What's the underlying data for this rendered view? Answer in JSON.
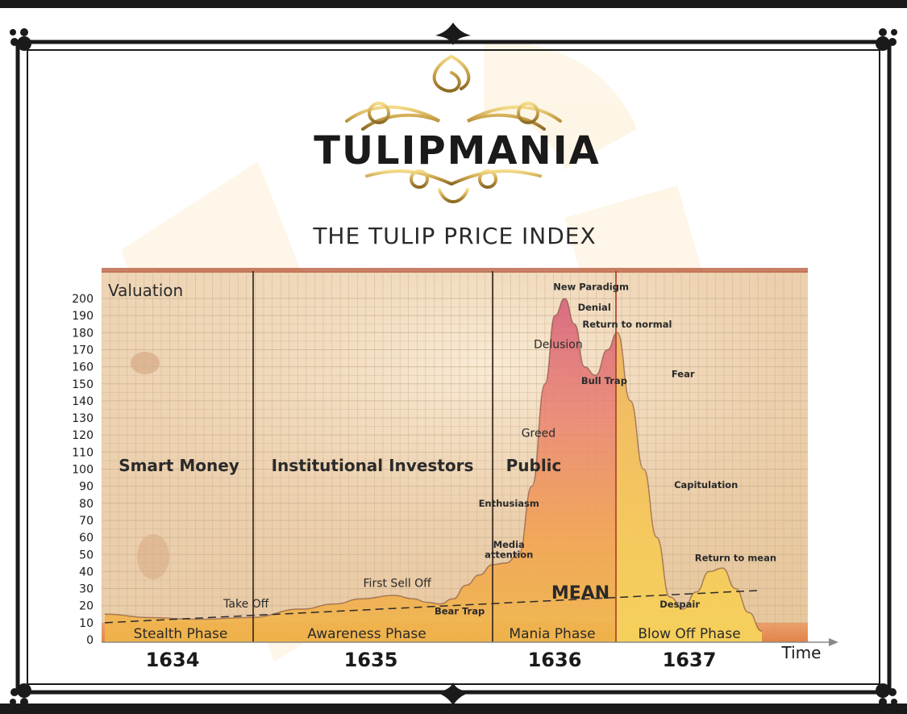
{
  "header": {
    "logo_text": "TULIPMANIA",
    "subtitle": "THE TULIP PRICE INDEX"
  },
  "colors": {
    "frame": "#1a1a1a",
    "gold": "#c9a24a",
    "paper": "#f1dcc0",
    "curve_top": "#d8607a",
    "curve_mid": "#f29a4a",
    "curve_bottom": "#f6c64a",
    "band": "#e88a4c",
    "text": "#2a2a2a"
  },
  "chart_data": {
    "type": "area",
    "ylabel": "Valuation",
    "xlabel": "Time",
    "ylim": [
      0,
      200
    ],
    "y_ticks": [
      0,
      10,
      20,
      30,
      40,
      50,
      60,
      70,
      80,
      90,
      100,
      110,
      120,
      130,
      140,
      150,
      160,
      170,
      180,
      190,
      200
    ],
    "grid": true,
    "years": [
      "1634",
      "1635",
      "1636",
      "1637"
    ],
    "phases": [
      "Stealth Phase",
      "Awareness Phase",
      "Mania Phase",
      "Blow Off Phase"
    ],
    "participants": [
      "Smart Money",
      "Institutional Investors",
      "Public"
    ],
    "mean_label": "MEAN",
    "mean_line": {
      "x": [
        0,
        100
      ],
      "y": [
        10,
        29
      ]
    },
    "series": [
      {
        "x": [
          0,
          7,
          14,
          22,
          30,
          35,
          39,
          44,
          47,
          49,
          51,
          53,
          55,
          57,
          59,
          61,
          63,
          65,
          67,
          68.5,
          70,
          71.5,
          73,
          74.7,
          76.5,
          78,
          80,
          82,
          84,
          86,
          88,
          90,
          92,
          94,
          96,
          98,
          100
        ],
        "y": [
          15,
          13,
          12,
          13,
          18,
          21,
          24,
          26,
          24,
          22,
          21,
          24,
          32,
          38,
          44,
          45,
          50,
          90,
          150,
          190,
          200,
          185,
          160,
          155,
          170,
          180,
          140,
          100,
          60,
          25,
          18,
          28,
          40,
          42,
          30,
          16,
          5
        ]
      }
    ],
    "annotations": [
      {
        "text": "Take Off",
        "x": 21.5,
        "y": 19
      },
      {
        "text": "First Sell Off",
        "x": 44.5,
        "y": 31
      },
      {
        "text": "Bear Trap",
        "x": 54,
        "y": 15
      },
      {
        "text": "Media",
        "x": 61.5,
        "y": 54
      },
      {
        "text": "attention",
        "x": 61.5,
        "y": 48
      },
      {
        "text": "Enthusiasm",
        "x": 61.5,
        "y": 78
      },
      {
        "text": "Greed",
        "x": 66,
        "y": 119
      },
      {
        "text": "Delusion",
        "x": 69,
        "y": 171
      },
      {
        "text": "New Paradigm",
        "x": 74,
        "y": 205
      },
      {
        "text": "Denial",
        "x": 74.5,
        "y": 193
      },
      {
        "text": "Return to normal",
        "x": 79.5,
        "y": 183
      },
      {
        "text": "Bull Trap",
        "x": 76,
        "y": 150
      },
      {
        "text": "Fear",
        "x": 88,
        "y": 154
      },
      {
        "text": "Capitulation",
        "x": 91.5,
        "y": 89
      },
      {
        "text": "Return to mean",
        "x": 96,
        "y": 46
      },
      {
        "text": "Despair",
        "x": 87.5,
        "y": 19
      }
    ]
  }
}
